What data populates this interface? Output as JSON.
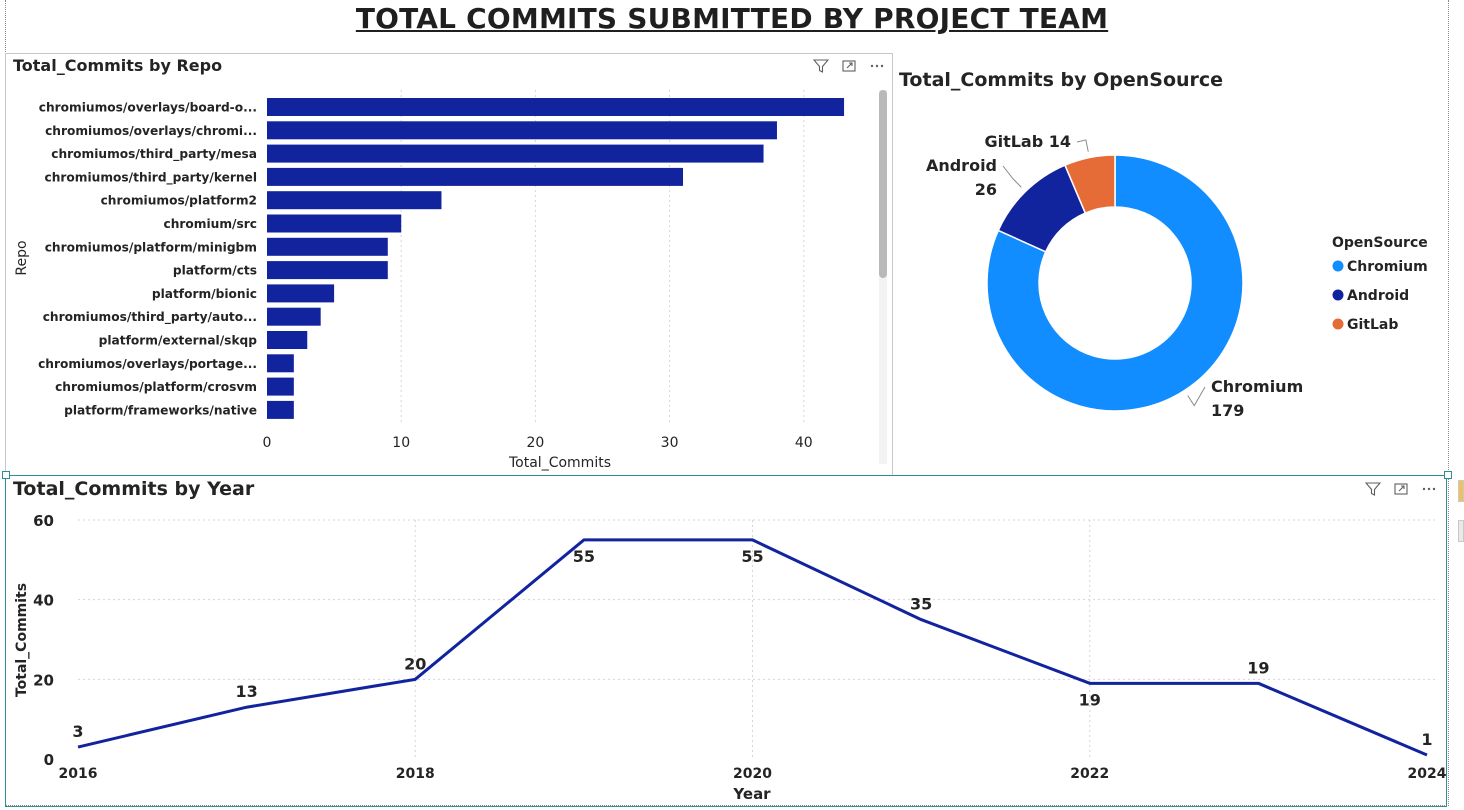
{
  "page": {
    "title": "TOTAL COMMITS SUBMITTED BY PROJECT TEAM"
  },
  "toolbar_icons": [
    "filter-icon",
    "focus-mode-icon",
    "more-options-icon"
  ],
  "bar_visual": {
    "title": "Total_Commits by Repo",
    "ylabel": "Repo",
    "xlabel": "Total_Commits",
    "color": "#12239E",
    "chart_data": {
      "type": "bar",
      "orientation": "horizontal",
      "categories": [
        "chromiumos/overlays/board-o...",
        "chromiumos/overlays/chromi...",
        "chromiumos/third_party/mesa",
        "chromiumos/third_party/kernel",
        "chromiumos/platform2",
        "chromium/src",
        "chromiumos/platform/minigbm",
        "platform/cts",
        "platform/bionic",
        "chromiumos/third_party/auto...",
        "platform/external/skqp",
        "chromiumos/overlays/portage...",
        "chromiumos/platform/crosvm",
        "platform/frameworks/native"
      ],
      "values": [
        43,
        38,
        37,
        31,
        13,
        10,
        9,
        9,
        5,
        4,
        3,
        2,
        2,
        2
      ],
      "xlim": [
        0,
        45
      ],
      "xticks": [
        0,
        10,
        20,
        30,
        40
      ],
      "grid": true
    }
  },
  "donut_visual": {
    "title": "Total_Commits by OpenSource",
    "legend_title": "OpenSource",
    "chart_data": {
      "type": "pie",
      "style": "donut",
      "slices": [
        {
          "name": "Chromium",
          "value": 179,
          "color": "#118DFF",
          "label_name": "Chromium",
          "label_value": "179"
        },
        {
          "name": "Android",
          "value": 26,
          "color": "#12239E",
          "label_name": "Android",
          "label_value": "26"
        },
        {
          "name": "GitLab",
          "value": 14,
          "color": "#E66C37",
          "label_name": "GitLab",
          "label_value": "14"
        }
      ],
      "legend_placement": "right"
    }
  },
  "line_visual": {
    "title": "Total_Commits by Year",
    "ylabel": "Total_Commits",
    "xlabel": "Year",
    "color": "#12239E",
    "chart_data": {
      "type": "line",
      "x": [
        2016,
        2017,
        2018,
        2019,
        2020,
        2021,
        2022,
        2023,
        2024
      ],
      "values": [
        3,
        13,
        20,
        55,
        55,
        35,
        19,
        19,
        1
      ],
      "xticks": [
        2016,
        2018,
        2020,
        2022,
        2024
      ],
      "yticks": [
        0,
        20,
        40,
        60
      ],
      "ylim": [
        0,
        60
      ],
      "grid": true
    }
  }
}
